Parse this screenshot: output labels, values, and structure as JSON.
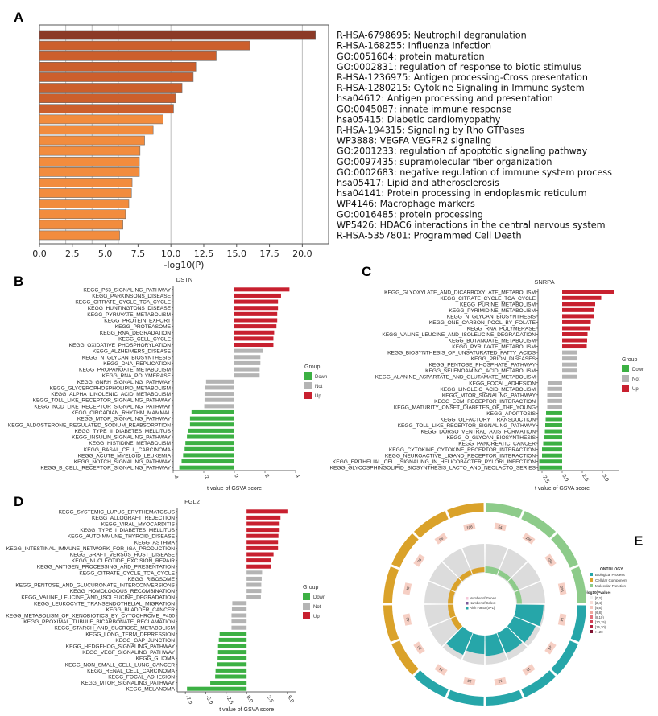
{
  "panels": {
    "A": "A",
    "B": "B",
    "C": "C",
    "D": "D",
    "E": "E"
  },
  "chart_data": [
    {
      "id": "A",
      "type": "bar",
      "orientation": "horizontal",
      "title": "",
      "xlabel": "-log10(P)",
      "ylabel": "",
      "xlim": [
        0,
        22
      ],
      "xticks": [
        "0.0",
        "2.5",
        "5.0",
        "7.5",
        "10.0",
        "12.5",
        "15.0",
        "17.5",
        "20.0"
      ],
      "xtick_values": [
        0,
        2.5,
        5,
        7.5,
        10,
        12.5,
        15,
        17.5,
        20
      ],
      "gridlines_x": [
        2,
        4,
        6,
        10,
        20
      ],
      "colors": {
        "top": "#8B3A27",
        "mid": "#CC5F2C",
        "low": "#F28C3E",
        "gridline": "#BDBDBD",
        "edge": "#6b6b6b"
      },
      "categories": [
        "R-HSA-6798695: Neutrophil degranulation",
        "R-HSA-168255: Influenza Infection",
        "GO:0051604: protein maturation",
        "GO:0002831: regulation of response to biotic stimulus",
        "R-HSA-1236975: Antigen processing-Cross presentation",
        "R-HSA-1280215: Cytokine Signaling in Immune system",
        "hsa04612: Antigen processing and presentation",
        "GO:0045087: innate immune response",
        "hsa05415: Diabetic cardiomyopathy",
        "R-HSA-194315: Signaling by Rho GTPases",
        "WP3888: VEGFA VEGFR2 signaling",
        "GO:2001233: regulation of apoptotic signaling pathway",
        "GO:0097435: supramolecular fiber organization",
        "GO:0002683: negative regulation of immune system process",
        "hsa05417: Lipid and atherosclerosis",
        "hsa04141: Protein processing in endoplasmic reticulum",
        "WP4146: Macrophage markers",
        "GO:0016485: protein processing",
        "WP5426: HDAC6 interactions in the central nervous system",
        "R-HSA-5357801: Programmed Cell Death"
      ],
      "values": [
        21.0,
        16.0,
        13.45,
        11.9,
        11.7,
        10.85,
        10.35,
        10.2,
        9.4,
        8.65,
        8.0,
        7.65,
        7.6,
        7.6,
        7.05,
        7.0,
        6.8,
        6.55,
        6.35,
        6.1
      ],
      "color_levels": [
        "top",
        "mid",
        "mid",
        "mid",
        "mid",
        "mid",
        "mid",
        "mid",
        "low",
        "low",
        "low",
        "low",
        "low",
        "low",
        "low",
        "low",
        "low",
        "low",
        "low",
        "low"
      ]
    },
    {
      "id": "B",
      "type": "bar",
      "orientation": "horizontal",
      "title": "DSTN",
      "xlabel": "t value of GSVA score",
      "xlim": [
        -4,
        4
      ],
      "xticks": [
        "-4",
        "-2",
        "0",
        "2",
        "4"
      ],
      "xtick_values": [
        -4,
        -2,
        0,
        2,
        4
      ],
      "legend": {
        "title": "Group",
        "position": "right",
        "entries": [
          {
            "label": "Down",
            "color": "#3CB043"
          },
          {
            "label": "Not",
            "color": "#B4B4B4"
          },
          {
            "label": "Up",
            "color": "#C8202F"
          }
        ]
      },
      "categories": [
        "KEGG_P53_SIGNALING_PATHWAY",
        "KEGG_PARKINSONS_DISEASE",
        "KEGG_CITRATE_CYCLE_TCA_CYCLE",
        "KEGG_HUNTINGTONS_DISEASE",
        "KEGG_PYRUVATE_METABOLISM",
        "KEGG_PROTEIN_EXPORT",
        "KEGG_PROTEASOME",
        "KEGG_RNA_DEGRADATION",
        "KEGG_CELL_CYCLE",
        "KEGG_OXIDATIVE_PHOSPHORYLATION",
        "KEGG_ALZHEIMERS_DISEASE",
        "KEGG_N_GLYCAN_BIOSYNTHESIS",
        "KEGG_DNA_REPLICATION",
        "KEGG_PROPANOATE_METABOLISM",
        "KEGG_RNA_POLYMERASE",
        "KEGG_GNRH_SIGNALING_PATHWAY",
        "KEGG_GLYCEROPHOSPHOLIPID_METABOLISM",
        "KEGG_ALPHA_LINOLENIC_ACID_METABOLISM",
        "KEGG_TOLL_LIKE_RECEPTOR_SIGNALING_PATHWAY",
        "KEGG_NOD_LIKE_RECEPTOR_SIGNALING_PATHWAY",
        "KEGG_CIRCADIAN_RHYTHM_MAMMAL",
        "KEGG_MTOR_SIGNALING_PATHWAY",
        "KEGG_ALDOSTERONE_REGULATED_SODIUM_REABSORPTION",
        "KEGG_TYPE_II_DIABETES_MELLITUS",
        "KEGG_INSULIN_SIGNALING_PATHWAY",
        "KEGG_HISTIDINE_METABOLISM",
        "KEGG_BASAL_CELL_CARCINOMA",
        "KEGG_ACUTE_MYELOID_LEUKEMIA",
        "KEGG_NOTCH_SIGNALING_PATHWAY",
        "KEGG_B_CELL_RECEPTOR_SIGNALING_PATHWAY"
      ],
      "values": [
        3.6,
        3.05,
        2.85,
        2.85,
        2.8,
        2.8,
        2.75,
        2.6,
        2.55,
        2.55,
        1.85,
        1.7,
        1.7,
        1.65,
        1.65,
        -1.85,
        -1.9,
        -1.95,
        -1.95,
        -1.97,
        -2.8,
        -2.9,
        -2.9,
        -3.0,
        -3.1,
        -3.2,
        -3.25,
        -3.35,
        -3.45,
        -3.6
      ],
      "groups": [
        "Up",
        "Up",
        "Up",
        "Up",
        "Up",
        "Up",
        "Up",
        "Up",
        "Up",
        "Up",
        "Not",
        "Not",
        "Not",
        "Not",
        "Not",
        "Not",
        "Not",
        "Not",
        "Not",
        "Not",
        "Down",
        "Down",
        "Down",
        "Down",
        "Down",
        "Down",
        "Down",
        "Down",
        "Down",
        "Down"
      ]
    },
    {
      "id": "C",
      "type": "bar",
      "orientation": "horizontal",
      "title": "SNRPA",
      "xlabel": "t value of GSVA score",
      "xlim": [
        -3.0,
        7.0
      ],
      "xticks": [
        "-2.5",
        "0.0",
        "2.5",
        "5.0"
      ],
      "xtick_values": [
        -2.5,
        0,
        2.5,
        5.0
      ],
      "legend": {
        "title": "Group",
        "position": "right",
        "entries": [
          {
            "label": "Down",
            "color": "#3CB043"
          },
          {
            "label": "Not",
            "color": "#B4B4B4"
          },
          {
            "label": "Up",
            "color": "#C8202F"
          }
        ]
      },
      "categories": [
        "KEGG_GLYOXYLATE_AND_DICARBOXYLATE_METABOLISM",
        "KEGG_CITRATE_CYCLE_TCA_CYCLE",
        "KEGG_PURINE_METABOLISM",
        "KEGG_PYRIMIDINE_METABOLISM",
        "KEGG_N_GLYCAN_BIOSYNTHESIS",
        "KEGG_ONE_CARBON_POOL_BY_FOLATE",
        "KEGG_RNA_POLYMERASE",
        "KEGG_VALINE_LEUCINE_AND_ISOLEUCINE_DEGRADATION",
        "KEGG_BUTANOATE_METABOLISM",
        "KEGG_PYRUVATE_METABOLISM",
        "KEGG_BIOSYNTHESIS_OF_UNSATURATED_FATTY_ACIDS",
        "KEGG_PRION_DISEASES",
        "KEGG_PENTOSE_PHOSPHATE_PATHWAY",
        "KEGG_SELENOAMINO_ACID_METABOLISM",
        "KEGG_ALANINE_ASPARTATE_AND_GLUTAMATE_METABOLISM",
        "KEGG_FOCAL_ADHESION",
        "KEGG_LINOLEIC_ACID_METABOLISM",
        "KEGG_MTOR_SIGNALING_PATHWAY",
        "KEGG_ECM_RECEPTOR_INTERACTION",
        "KEGG_MATURITY_ONSET_DIABETES_OF_THE_YOUNG",
        "KEGG_APOPTOSIS",
        "KEGG_OLFACTORY_TRANSDUCTION",
        "KEGG_TOLL_LIKE_RECEPTOR_SIGNALING_PATHWAY",
        "KEGG_DORSO_VENTRAL_AXIS_FORMATION",
        "KEGG_O_GLYCAN_BIOSYNTHESIS",
        "KEGG_PANCREATIC_CANCER",
        "KEGG_CYTOKINE_CYTOKINE_RECEPTOR_INTERACTION",
        "KEGG_NEUROACTIVE_LIGAND_RECEPTOR_INTERACTION",
        "KEGG_EPITHELIAL_CELL_SIGNALING_IN_HELICOBACTER_PYLORI_INFECTION",
        "KEGG_GLYCOSPHINGOLIPID_BIOSYNTHESIS_LACTO_AND_NEOLACTO_SERIES"
      ],
      "values": [
        6.4,
        4.85,
        4.1,
        3.95,
        3.9,
        3.55,
        3.4,
        3.15,
        3.1,
        3.05,
        1.9,
        1.85,
        1.8,
        1.8,
        1.8,
        -1.8,
        -1.85,
        -1.85,
        -1.85,
        -1.85,
        -2.0,
        -2.05,
        -2.1,
        -2.15,
        -2.2,
        -2.35,
        -2.5,
        -2.5,
        -2.85,
        -2.85
      ],
      "groups": [
        "Up",
        "Up",
        "Up",
        "Up",
        "Up",
        "Up",
        "Up",
        "Up",
        "Up",
        "Up",
        "Not",
        "Not",
        "Not",
        "Not",
        "Not",
        "Not",
        "Not",
        "Not",
        "Not",
        "Not",
        "Down",
        "Down",
        "Down",
        "Down",
        "Down",
        "Down",
        "Down",
        "Down",
        "Down",
        "Down"
      ]
    },
    {
      "id": "D",
      "type": "bar",
      "orientation": "horizontal",
      "title": "FGL2",
      "xlabel": "t value of GSVA score",
      "xlim": [
        -8.5,
        6.0
      ],
      "xticks": [
        "-7.5",
        "-5.0",
        "-2.5",
        "0.0",
        "2.5",
        "5.0"
      ],
      "xtick_values": [
        -7.5,
        -5.0,
        -2.5,
        0,
        2.5,
        5.0
      ],
      "legend": {
        "title": "Group",
        "position": "right",
        "entries": [
          {
            "label": "Down",
            "color": "#3CB043"
          },
          {
            "label": "Not",
            "color": "#B4B4B4"
          },
          {
            "label": "Up",
            "color": "#C8202F"
          }
        ]
      },
      "categories": [
        "KEGG_SYSTEMIC_LUPUS_ERYTHEMATOSUS",
        "KEGG_ALLOGRAFT_REJECTION",
        "KEGG_VIRAL_MYOCARDITIS",
        "KEGG_TYPE_I_DIABETES_MELLITUS",
        "KEGG_AUTOIMMUNE_THYROID_DISEASE",
        "KEGG_ASTHMA",
        "KEGG_INTESTINAL_IMMUNE_NETWORK_FOR_IGA_PRODUCTION",
        "KEGG_GRAFT_VERSUS_HOST_DISEASE",
        "KEGG_NUCLEOTIDE_EXCISION_REPAIR",
        "KEGG_ANTIGEN_PROCESSING_AND_PRESENTATION",
        "KEGG_CITRATE_CYCLE_TCA_CYCLE",
        "KEGG_RIBOSOME",
        "KEGG_PENTOSE_AND_GLUCURONATE_INTERCONVERSIONS",
        "KEGG_HOMOLOGOUS_RECOMBINATION",
        "KEGG_VALINE_LEUCINE_AND_ISOLEUCINE_DEGRADATION",
        "KEGG_LEUKOCYTE_TRANSENDOTHELIAL_MIGRATION",
        "KEGG_BLADDER_CANCER",
        "KEGG_METABOLISM_OF_XENOBIOTICS_BY_CYTOCHROME_P450",
        "KEGG_PROXIMAL_TUBULE_BICARBONATE_RECLAMATION",
        "KEGG_STARCH_AND_SUCROSE_METABOLISM",
        "KEGG_LONG_TERM_DEPRESSION",
        "KEGG_GAP_JUNCTION",
        "KEGG_HEDGEHOG_SIGNALING_PATHWAY",
        "KEGG_VEGF_SIGNALING_PATHWAY",
        "KEGG_GLIOMA",
        "KEGG_NON_SMALL_CELL_LUNG_CANCER",
        "KEGG_RENAL_CELL_CARCINOMA",
        "KEGG_FOCAL_ADHESION",
        "KEGG_MTOR_SIGNALING_PATHWAY",
        "KEGG_MELANOMA"
      ],
      "values": [
        5.0,
        4.15,
        4.05,
        4.05,
        3.9,
        3.85,
        3.85,
        3.3,
        3.0,
        2.95,
        1.9,
        1.85,
        1.8,
        1.8,
        1.75,
        -1.75,
        -1.8,
        -1.85,
        -1.85,
        -1.85,
        -3.3,
        -3.4,
        -3.5,
        -3.5,
        -3.55,
        -3.65,
        -3.8,
        -3.85,
        -4.45,
        -7.3
      ],
      "groups": [
        "Up",
        "Up",
        "Up",
        "Up",
        "Up",
        "Up",
        "Up",
        "Up",
        "Up",
        "Up",
        "Not",
        "Not",
        "Not",
        "Not",
        "Not",
        "Not",
        "Not",
        "Not",
        "Not",
        "Not",
        "Down",
        "Down",
        "Down",
        "Down",
        "Down",
        "Down",
        "Down",
        "Down",
        "Down",
        "Down"
      ]
    },
    {
      "id": "E",
      "type": "circular-enrichment",
      "title": "",
      "legend": {
        "ontology_title": "ONTOLOGY",
        "ontology": [
          {
            "label": "Biological Process",
            "color": "#26A6A9"
          },
          {
            "label": "Cellular Component",
            "color": "#DAA22A"
          },
          {
            "label": "Molecular Function",
            "color": "#8DCB8A"
          }
        ],
        "pvalue_title": "-log10(Pvalue)",
        "pvalue_bins": [
          {
            "label": "[0,2)",
            "color": "#F2F2F2"
          },
          {
            "label": "[2,4)",
            "color": "#F7DEDA"
          },
          {
            "label": "[4,6)",
            "color": "#F4C7C0"
          },
          {
            "label": "[6,8)",
            "color": "#F0A89F"
          },
          {
            "label": "[8,10)",
            "color": "#E5707A"
          },
          {
            "label": "[10,15)",
            "color": "#D23F56"
          },
          {
            "label": "[15,20)",
            "color": "#B2203D"
          },
          {
            "label": ">=20",
            "color": "#7E1230"
          }
        ],
        "inner_legend": [
          {
            "label": "Number of Genes",
            "color": "#F4C7D8"
          },
          {
            "label": "Number of Select",
            "color": "#7B5B9A"
          },
          {
            "label": "Rich Factor(0~1)",
            "color": "#26A6A9"
          }
        ]
      },
      "sectors": [
        {
          "ontology": "Molecular Function",
          "genes": 54,
          "rich_factor": 0.35
        },
        {
          "ontology": "Molecular Function",
          "genes": 186,
          "rich_factor": 0.05
        },
        {
          "ontology": "Molecular Function",
          "genes": 150,
          "rich_factor": 0.05
        },
        {
          "ontology": "Molecular Function",
          "genes": 206,
          "rich_factor": 0.05
        },
        {
          "ontology": "Biological Process",
          "genes": 14,
          "rich_factor": 0.95
        },
        {
          "ontology": "Biological Process",
          "genes": 24,
          "rich_factor": 0.85
        },
        {
          "ontology": "Biological Process",
          "genes": 15,
          "rich_factor": 0.8
        },
        {
          "ontology": "Biological Process",
          "genes": 13,
          "rich_factor": 0.75
        },
        {
          "ontology": "Biological Process",
          "genes": 13,
          "rich_factor": 0.7
        },
        {
          "ontology": "Biological Process",
          "genes": 14,
          "rich_factor": 0.85
        },
        {
          "ontology": "Cellular Component",
          "genes": 22,
          "rich_factor": 0.3
        },
        {
          "ontology": "Cellular Component",
          "genes": 40,
          "rich_factor": 0.2
        },
        {
          "ontology": "Cellular Component",
          "genes": 48,
          "rich_factor": 0.15
        },
        {
          "ontology": "Cellular Component",
          "genes": 70,
          "rich_factor": 0.12
        },
        {
          "ontology": "Cellular Component",
          "genes": 96,
          "rich_factor": 0.1
        },
        {
          "ontology": "Cellular Component",
          "genes": 106,
          "rich_factor": 0.08
        }
      ]
    }
  ]
}
